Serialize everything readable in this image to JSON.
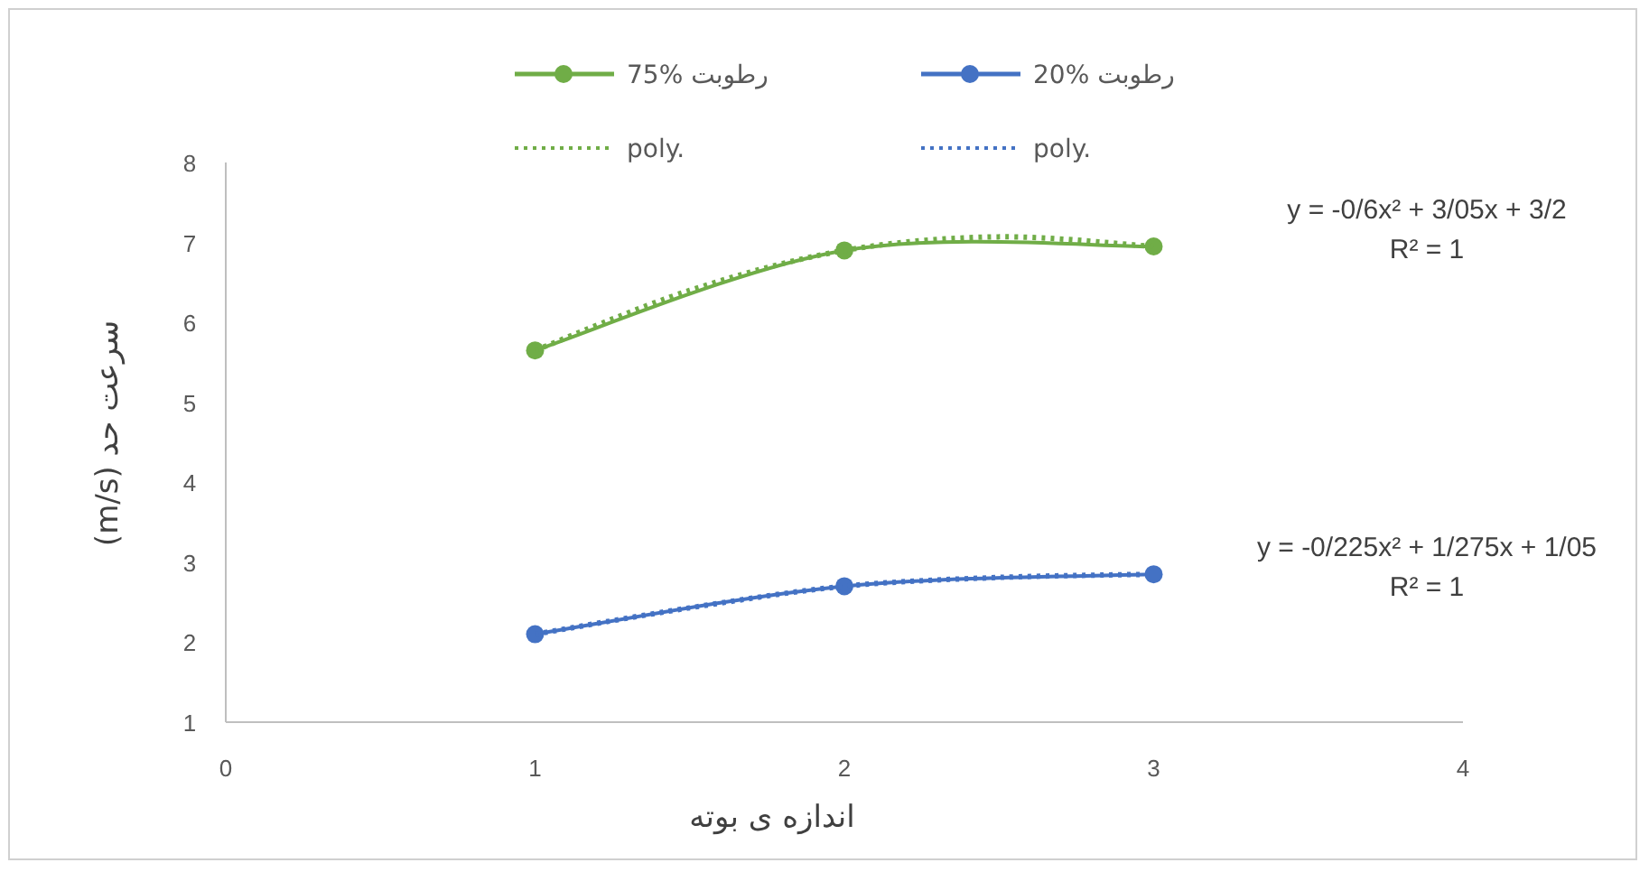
{
  "chart_data": {
    "type": "line",
    "xlabel": "اندازه ی بوته",
    "ylabel": "سرعت حد (m/s)",
    "x": [
      1,
      2,
      3
    ],
    "xlim": [
      0,
      4
    ],
    "xticks": [
      0,
      1,
      2,
      3,
      4
    ],
    "ylim": [
      1,
      8
    ],
    "yticks": [
      1,
      2,
      3,
      4,
      5,
      6,
      7,
      8
    ],
    "grid": false,
    "legend": "top",
    "series": [
      {
        "name": "رطوبت %75",
        "color": "#70ad47",
        "values": [
          5.65,
          6.9,
          6.95
        ],
        "marker": "circle",
        "line_style": "solid"
      },
      {
        "name": "رطوبت %20",
        "color": "#4472c4",
        "values": [
          2.1,
          2.7,
          2.85
        ],
        "marker": "circle",
        "line_style": "solid"
      },
      {
        "name": "poly.",
        "color": "#70ad47",
        "type": "line",
        "x": [
          1,
          1.5,
          2,
          2.5,
          3
        ],
        "values": [
          5.65,
          6.4,
          6.9,
          7.07,
          6.95
        ],
        "marker": "none",
        "line_style": "dotted"
      },
      {
        "name": "poly.",
        "color": "#4472c4",
        "type": "line",
        "x": [
          1,
          1.5,
          2,
          2.5,
          3
        ],
        "values": [
          2.1,
          2.43,
          2.7,
          2.81,
          2.85
        ],
        "marker": "none",
        "line_style": "dotted"
      }
    ],
    "annotations": [
      "y = -0/6x² + 3/05x + 3/2",
      "R² = 1",
      "y = -0/225x² + 1/275x + 1/05",
      "R² = 1"
    ]
  }
}
